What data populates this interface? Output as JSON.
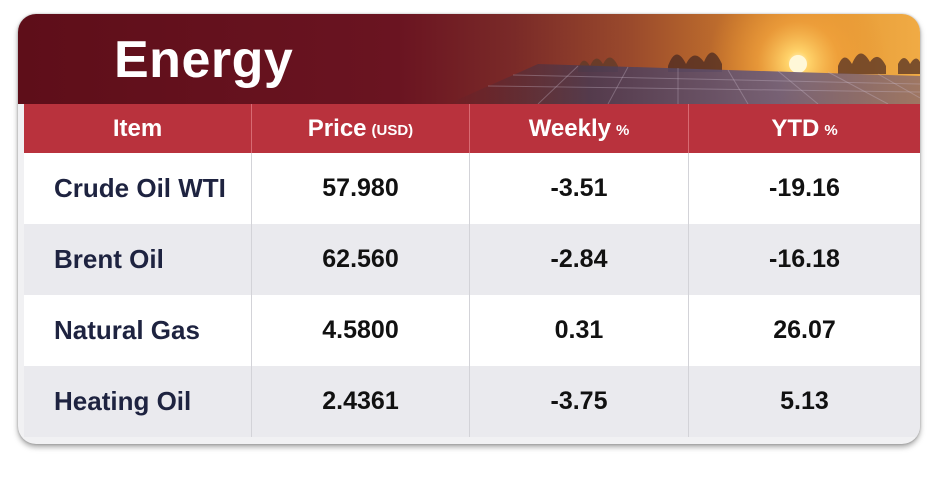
{
  "title": "Energy",
  "headers": [
    {
      "label": "Item",
      "unit": ""
    },
    {
      "label": "Price",
      "unit": "(USD)"
    },
    {
      "label": "Weekly",
      "unit": "%"
    },
    {
      "label": "YTD",
      "unit": "%"
    }
  ],
  "rows": [
    {
      "item": "Crude Oil WTI",
      "price": "57.980",
      "weekly": "-3.51",
      "ytd": "-19.16"
    },
    {
      "item": "Brent Oil",
      "price": "62.560",
      "weekly": "-2.84",
      "ytd": "-16.18"
    },
    {
      "item": "Natural Gas",
      "price": "4.5800",
      "weekly": "0.31",
      "ytd": "26.07"
    },
    {
      "item": "Heating Oil",
      "price": "2.4361",
      "weekly": "-3.75",
      "ytd": "5.13"
    }
  ],
  "colors": {
    "banner_dark": "#5e0e19",
    "header_red": "#b9323d",
    "sunset_orange": "#f0ab45"
  }
}
